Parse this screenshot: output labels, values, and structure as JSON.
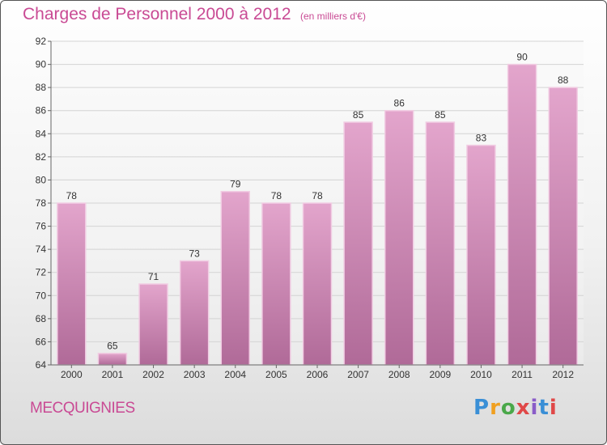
{
  "chart_data": {
    "type": "bar",
    "title": "Charges de Personnel 2000 à 2012",
    "subtitle": "(en milliers d'€)",
    "categories": [
      "2000",
      "2001",
      "2002",
      "2003",
      "2004",
      "2005",
      "2006",
      "2007",
      "2008",
      "2009",
      "2010",
      "2011",
      "2012"
    ],
    "values": [
      78,
      65,
      71,
      73,
      79,
      78,
      78,
      85,
      86,
      85,
      83,
      90,
      88
    ],
    "ylim": [
      64,
      92
    ],
    "yticks": [
      64,
      66,
      68,
      70,
      72,
      74,
      76,
      78,
      80,
      82,
      84,
      86,
      88,
      90,
      92
    ],
    "grid": true,
    "data_labels": true,
    "bar_color_top": "#e3a5cc",
    "bar_color_bottom": "#b06a98"
  },
  "footer": {
    "commune": "MECQUIGNIES",
    "logo_text": "Proxiti"
  },
  "colors": {
    "accent": "#c94a94"
  }
}
